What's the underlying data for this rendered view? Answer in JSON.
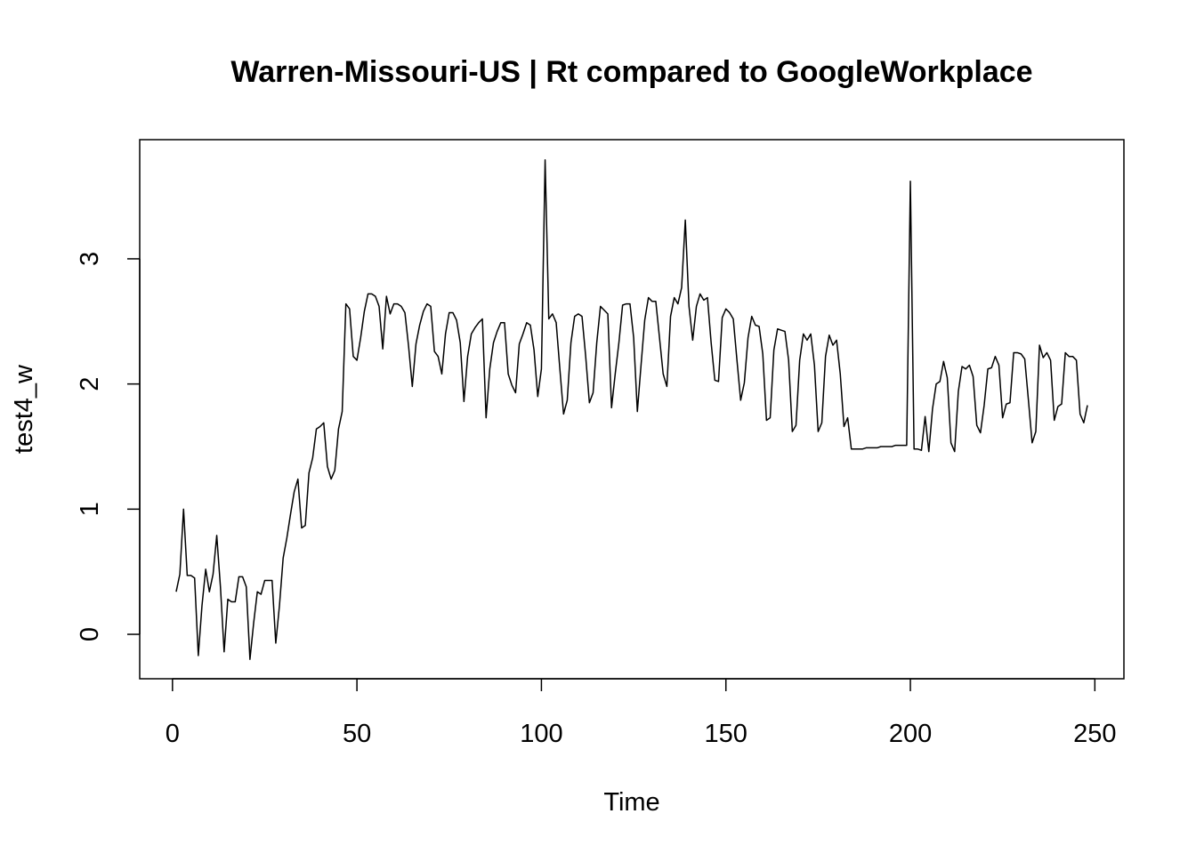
{
  "chart_data": {
    "type": "line",
    "title": "Warren-Missouri-US | Rt compared to GoogleWorkplace",
    "x_label": "Time",
    "y_label": "test4_w",
    "color": "#000000",
    "x": [
      1,
      2,
      3,
      4,
      5,
      6,
      7,
      8,
      9,
      10,
      11,
      12,
      13,
      14,
      15,
      16,
      17,
      18,
      19,
      20,
      21,
      22,
      23,
      24,
      25,
      26,
      27,
      28,
      29,
      30,
      31,
      32,
      33,
      34,
      35,
      36,
      37,
      38,
      39,
      40,
      41,
      42,
      43,
      44,
      45,
      46,
      47,
      48,
      49,
      50,
      51,
      52,
      53,
      54,
      55,
      56,
      57,
      58,
      59,
      60,
      61,
      62,
      63,
      64,
      65,
      66,
      67,
      68,
      69,
      70,
      71,
      72,
      73,
      74,
      75,
      76,
      77,
      78,
      79,
      80,
      81,
      82,
      83,
      84,
      85,
      86,
      87,
      88,
      89,
      90,
      91,
      92,
      93,
      94,
      95,
      96,
      97,
      98,
      99,
      100,
      101,
      102,
      103,
      104,
      105,
      106,
      107,
      108,
      109,
      110,
      111,
      112,
      113,
      114,
      115,
      116,
      117,
      118,
      119,
      120,
      121,
      122,
      123,
      124,
      125,
      126,
      127,
      128,
      129,
      130,
      131,
      132,
      133,
      134,
      135,
      136,
      137,
      138,
      139,
      140,
      141,
      142,
      143,
      144,
      145,
      146,
      147,
      148,
      149,
      150,
      151,
      152,
      153,
      154,
      155,
      156,
      157,
      158,
      159,
      160,
      161,
      162,
      163,
      164,
      165,
      166,
      167,
      168,
      169,
      170,
      171,
      172,
      173,
      174,
      175,
      176,
      177,
      178,
      179,
      180,
      181,
      182,
      183,
      184,
      185,
      186,
      187,
      188,
      189,
      190,
      191,
      192,
      193,
      194,
      195,
      196,
      197,
      198,
      199,
      200,
      201,
      202,
      203,
      204,
      205,
      206,
      207,
      208,
      209,
      210,
      211,
      212,
      213,
      214,
      215,
      216,
      217,
      218,
      219,
      220,
      221,
      222,
      223,
      224,
      225,
      226,
      227,
      228,
      229,
      230,
      231,
      232,
      233,
      234,
      235,
      236,
      237,
      238,
      239,
      240,
      241,
      242,
      243,
      244,
      245,
      246,
      247,
      248
    ],
    "values": [
      0.34,
      0.48,
      1.0,
      0.47,
      0.47,
      0.45,
      -0.17,
      0.23,
      0.52,
      0.34,
      0.48,
      0.79,
      0.38,
      -0.14,
      0.28,
      0.26,
      0.26,
      0.46,
      0.46,
      0.38,
      -0.2,
      0.09,
      0.34,
      0.32,
      0.43,
      0.43,
      0.43,
      -0.07,
      0.23,
      0.61,
      0.77,
      0.96,
      1.14,
      1.24,
      0.85,
      0.87,
      1.29,
      1.41,
      1.64,
      1.66,
      1.69,
      1.34,
      1.24,
      1.31,
      1.64,
      1.78,
      2.64,
      2.6,
      2.22,
      2.19,
      2.37,
      2.58,
      2.72,
      2.72,
      2.7,
      2.62,
      2.28,
      2.7,
      2.56,
      2.64,
      2.64,
      2.62,
      2.57,
      2.3,
      1.98,
      2.32,
      2.47,
      2.58,
      2.64,
      2.62,
      2.26,
      2.22,
      2.08,
      2.4,
      2.57,
      2.57,
      2.51,
      2.33,
      1.86,
      2.22,
      2.4,
      2.45,
      2.49,
      2.52,
      1.73,
      2.12,
      2.33,
      2.42,
      2.49,
      2.49,
      2.08,
      1.99,
      1.93,
      2.32,
      2.4,
      2.49,
      2.47,
      2.27,
      1.9,
      2.12,
      3.79,
      2.52,
      2.56,
      2.49,
      2.12,
      1.76,
      1.87,
      2.33,
      2.54,
      2.56,
      2.54,
      2.22,
      1.85,
      1.93,
      2.33,
      2.62,
      2.59,
      2.56,
      1.81,
      2.08,
      2.33,
      2.63,
      2.64,
      2.64,
      2.37,
      1.78,
      2.15,
      2.51,
      2.69,
      2.66,
      2.66,
      2.37,
      2.08,
      1.98,
      2.54,
      2.69,
      2.64,
      2.77,
      3.31,
      2.62,
      2.35,
      2.62,
      2.72,
      2.67,
      2.69,
      2.33,
      2.03,
      2.02,
      2.53,
      2.6,
      2.57,
      2.52,
      2.19,
      1.87,
      2.01,
      2.37,
      2.54,
      2.47,
      2.46,
      2.24,
      1.71,
      1.73,
      2.27,
      2.44,
      2.43,
      2.42,
      2.19,
      1.62,
      1.67,
      2.19,
      2.4,
      2.35,
      2.4,
      2.15,
      1.62,
      1.69,
      2.22,
      2.39,
      2.31,
      2.35,
      2.08,
      1.66,
      1.73,
      1.48,
      1.48,
      1.48,
      1.48,
      1.49,
      1.49,
      1.49,
      1.49,
      1.5,
      1.5,
      1.5,
      1.5,
      1.51,
      1.51,
      1.51,
      1.51,
      3.62,
      1.48,
      1.48,
      1.47,
      1.74,
      1.46,
      1.8,
      2.0,
      2.02,
      2.18,
      2.05,
      1.53,
      1.46,
      1.94,
      2.14,
      2.12,
      2.15,
      2.06,
      1.67,
      1.61,
      1.83,
      2.12,
      2.13,
      2.22,
      2.15,
      1.73,
      1.84,
      1.85,
      2.25,
      2.25,
      2.24,
      2.2,
      1.87,
      1.53,
      1.62,
      2.31,
      2.21,
      2.25,
      2.19,
      1.71,
      1.82,
      1.84,
      2.25,
      2.22,
      2.22,
      2.19,
      1.76,
      1.69,
      1.83
    ],
    "xlim": [
      -8.88,
      257.88
    ],
    "xticks": [
      0,
      50,
      100,
      150,
      200,
      250
    ],
    "ylim": [
      -0.355,
      3.952
    ],
    "yticks": [
      0,
      1,
      2,
      3
    ]
  }
}
